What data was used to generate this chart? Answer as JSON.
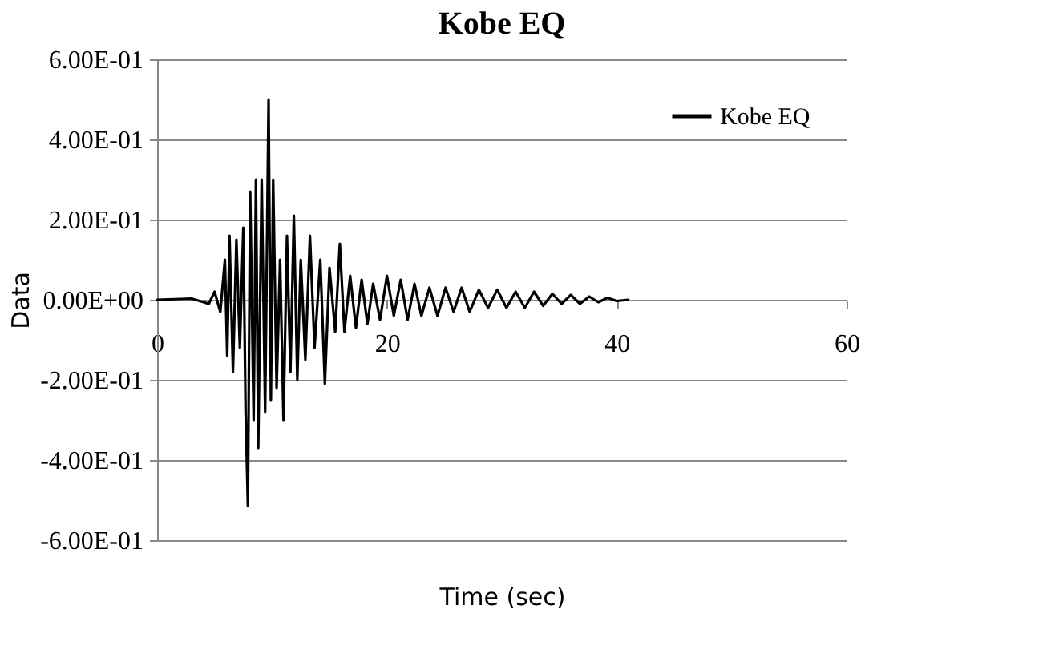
{
  "chart_data": {
    "type": "line",
    "title": "Kobe EQ",
    "xlabel": "Time (sec)",
    "ylabel": "Data",
    "xlim": [
      0,
      60
    ],
    "xticks": [
      0,
      20,
      40,
      60
    ],
    "ylim": [
      -0.6,
      0.6
    ],
    "yticks": [
      {
        "value": -0.6,
        "label": "-6.00E-01"
      },
      {
        "value": -0.4,
        "label": "-4.00E-01"
      },
      {
        "value": -0.2,
        "label": "-2.00E-01"
      },
      {
        "value": 0,
        "label": "0.00E+00"
      },
      {
        "value": 0.2,
        "label": "2.00E-01"
      },
      {
        "value": 0.4,
        "label": "4.00E-01"
      },
      {
        "value": 0.6,
        "label": "6.00E-01"
      }
    ],
    "grid": "y",
    "legend": "top right",
    "marker": "none",
    "line_style": "solid",
    "series": [
      {
        "name": "Kobe EQ",
        "color": "#000000",
        "x": [
          0,
          3,
          4.5,
          5,
          5.5,
          5.9,
          6.1,
          6.3,
          6.6,
          6.9,
          7.2,
          7.5,
          7.7,
          7.9,
          8.1,
          8.4,
          8.6,
          8.8,
          9.1,
          9.4,
          9.7,
          9.9,
          10.1,
          10.4,
          10.7,
          11.0,
          11.3,
          11.6,
          11.9,
          12.2,
          12.5,
          12.9,
          13.3,
          13.7,
          14.2,
          14.6,
          15.0,
          15.5,
          15.9,
          16.3,
          16.8,
          17.3,
          17.8,
          18.3,
          18.8,
          19.4,
          20.0,
          20.6,
          21.2,
          21.8,
          22.4,
          23.0,
          23.7,
          24.4,
          25.1,
          25.8,
          26.5,
          27.2,
          28.0,
          28.8,
          29.6,
          30.4,
          31.2,
          32.0,
          32.8,
          33.6,
          34.4,
          35.2,
          36.0,
          36.8,
          37.6,
          38.4,
          39.2,
          40.0,
          41.0
        ],
        "values": [
          0,
          0.003,
          -0.01,
          0.02,
          -0.03,
          0.1,
          -0.14,
          0.16,
          -0.18,
          0.15,
          -0.12,
          0.18,
          -0.28,
          -0.515,
          0.27,
          -0.3,
          0.3,
          -0.37,
          0.3,
          -0.28,
          0.5,
          -0.25,
          0.3,
          -0.22,
          0.1,
          -0.3,
          0.16,
          -0.18,
          0.21,
          -0.2,
          0.1,
          -0.15,
          0.16,
          -0.12,
          0.1,
          -0.21,
          0.08,
          -0.08,
          0.14,
          -0.08,
          0.06,
          -0.07,
          0.05,
          -0.06,
          0.04,
          -0.05,
          0.06,
          -0.04,
          0.05,
          -0.05,
          0.04,
          -0.04,
          0.03,
          -0.04,
          0.03,
          -0.03,
          0.03,
          -0.03,
          0.025,
          -0.02,
          0.025,
          -0.02,
          0.02,
          -0.02,
          0.02,
          -0.015,
          0.015,
          -0.01,
          0.012,
          -0.01,
          0.008,
          -0.006,
          0.005,
          -0.003,
          0
        ]
      }
    ]
  }
}
